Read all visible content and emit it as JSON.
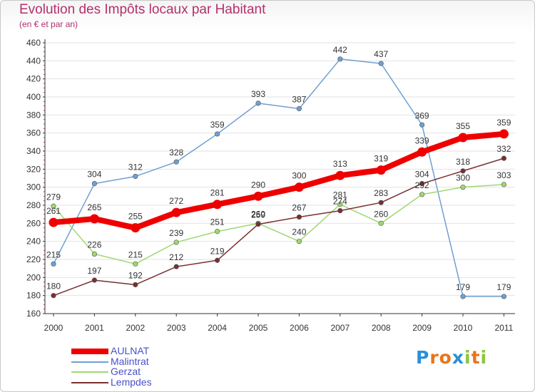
{
  "header": {
    "title": "Evolution des Impôts locaux par Habitant",
    "subtitle": "(en € et par an)"
  },
  "logo": {
    "text": "Proxiti",
    "letters": [
      {
        "ch": "P",
        "color": "#2a8fd8"
      },
      {
        "ch": "r",
        "color": "#e8751a"
      },
      {
        "ch": "o",
        "color": "#e8751a"
      },
      {
        "ch": "x",
        "color": "#2a8fd8"
      },
      {
        "ch": "i",
        "color": "#8cc63f"
      },
      {
        "ch": "t",
        "color": "#e8751a"
      },
      {
        "ch": "i",
        "color": "#8cc63f"
      }
    ]
  },
  "colors": {
    "title": "#b3306a",
    "axis": "#333333",
    "grid": "#e2e2e2",
    "tick_labels": "#333333",
    "legend_text": "#4a50c8"
  },
  "chart_data": {
    "type": "line",
    "title": "Evolution des Impôts locaux par Habitant",
    "subtitle": "(en € et par an)",
    "xlabel": "",
    "ylabel": "",
    "x": [
      "2000",
      "2001",
      "2002",
      "2003",
      "2004",
      "2005",
      "2006",
      "2007",
      "2008",
      "2009",
      "2010",
      "2011"
    ],
    "ylim": [
      160,
      460
    ],
    "yticks": [
      160,
      180,
      200,
      220,
      240,
      260,
      280,
      300,
      320,
      340,
      360,
      380,
      400,
      420,
      440,
      460
    ],
    "grid": true,
    "legend_position": "bottom-left",
    "series": [
      {
        "name": "AULNAT",
        "color": "#ee0000",
        "emphasis": true,
        "values": [
          261,
          265,
          255,
          272,
          281,
          290,
          300,
          313,
          319,
          339,
          355,
          359
        ]
      },
      {
        "name": "Malintrat",
        "color": "#6f9fd0",
        "emphasis": false,
        "values": [
          215,
          304,
          312,
          328,
          359,
          393,
          387,
          442,
          437,
          369,
          179,
          179
        ]
      },
      {
        "name": "Gerzat",
        "color": "#9fd870",
        "emphasis": false,
        "values": [
          279,
          226,
          215,
          239,
          251,
          260,
          240,
          281,
          260,
          292,
          300,
          303
        ]
      },
      {
        "name": "Lempdes",
        "color": "#7a3030",
        "emphasis": false,
        "values": [
          180,
          197,
          192,
          212,
          219,
          259,
          267,
          274,
          283,
          304,
          318,
          332
        ]
      }
    ]
  }
}
